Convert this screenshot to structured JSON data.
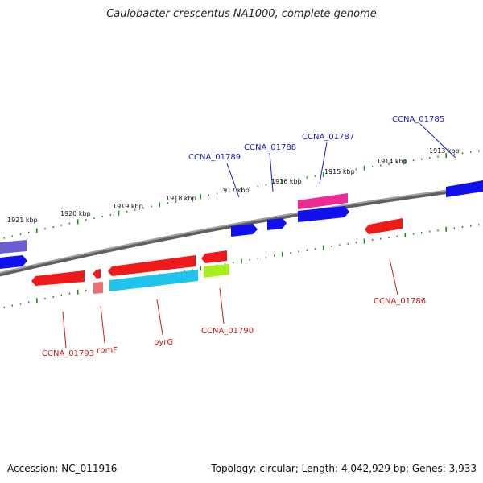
{
  "title": "Caulobacter crescentus NA1000, complete genome",
  "accession": "Accession: NC_011916",
  "summary": "Topology: circular; Length: 4,042,929 bp; Genes: 3,933",
  "colors": {
    "backbone": "#8a8a8a",
    "tick": "#1f8a1f",
    "forward_label": "#1a1acc",
    "reverse_label": "#cc1a1a"
  },
  "kbp_labels": [
    "1921 kbp",
    "1920 kbp",
    "1919 kbp",
    "1918 kbp",
    "1917 kbp",
    "1916 kbp",
    "1915 kbp",
    "1914 kbp",
    "1913 kbp"
  ],
  "forward_labels": [
    "CCNA_01789",
    "CCNA_01788",
    "CCNA_01787",
    "CCNA_01785"
  ],
  "reverse_labels": [
    "CCNA_01793",
    "rpmF",
    "pyrG",
    "CCNA_01790",
    "CCNA_01786"
  ]
}
